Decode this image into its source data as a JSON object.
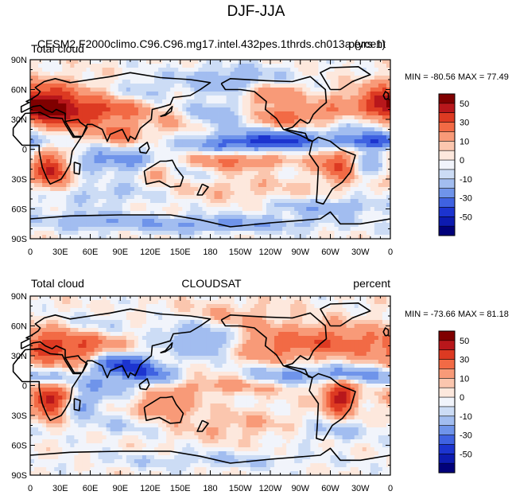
{
  "figure_title": "DJF-JJA",
  "x_tick_labels": [
    "0",
    "30E",
    "60E",
    "90E",
    "120E",
    "150E",
    "180",
    "150W",
    "120W",
    "90W",
    "60W",
    "30W",
    "0"
  ],
  "y_tick_labels": [
    "90N",
    "60N",
    "30N",
    "0",
    "30S",
    "60S",
    "90S"
  ],
  "colorbar_tick_labels": [
    "50",
    "30",
    "10",
    "0",
    "-10",
    "-30",
    "-50"
  ],
  "colorbar_colors": [
    "#800000",
    "#b8171b",
    "#dd3a22",
    "#f26a45",
    "#f89a78",
    "#fbc6ae",
    "#fde8dd",
    "#f1f4fb",
    "#ccdcf5",
    "#a2bdf0",
    "#6f94ea",
    "#3f62e1",
    "#1c34cf",
    "#0d1bb0",
    "#01017a"
  ],
  "colors": {
    "background": "#ffffff",
    "coastline": "#000000",
    "axis": "#000000"
  },
  "chart_data": [
    {
      "type": "heatmap",
      "title": "CESM2.F2000climo.C96.C96.mg17.intel.432pes.1thrds.ch013a (yrs 1)",
      "left_label": "Total cloud",
      "right_label": "percent",
      "stats_text": "MIN = -80.56 MAX =  77.49",
      "min": -80.56,
      "max": 77.49,
      "levels": [
        -60,
        -50,
        -40,
        -30,
        -20,
        -10,
        -5,
        0,
        5,
        10,
        20,
        30,
        40,
        50,
        60
      ],
      "x_range": [
        0,
        360
      ],
      "y_range": [
        -90,
        90
      ],
      "xlabel": "",
      "ylabel": ""
    },
    {
      "type": "heatmap",
      "title": "CLOUDSAT",
      "left_label": "Total cloud",
      "right_label": "percent",
      "stats_text": "MIN = -73.66 MAX =  81.18",
      "min": -73.66,
      "max": 81.18,
      "levels": [
        -60,
        -50,
        -40,
        -30,
        -20,
        -10,
        -5,
        0,
        5,
        10,
        20,
        30,
        40,
        50,
        60
      ],
      "x_range": [
        0,
        360
      ],
      "y_range": [
        -90,
        90
      ],
      "xlabel": "",
      "ylabel": ""
    }
  ]
}
